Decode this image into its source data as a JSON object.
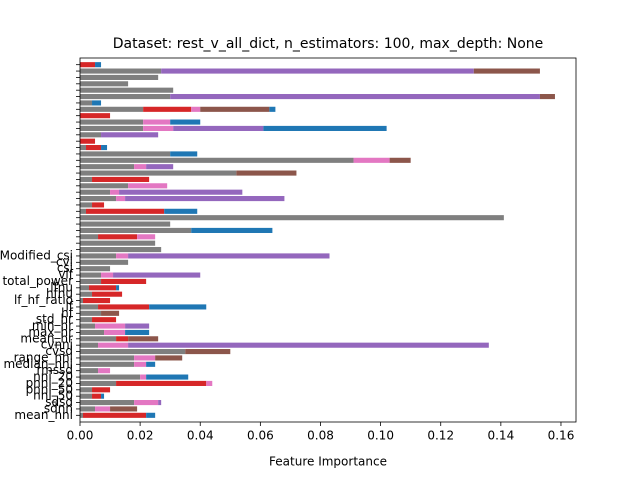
{
  "chart_data": {
    "type": "barh_stacked",
    "title": "Dataset: rest_v_all_dict, n_estimators: 100, max_depth: None",
    "x_label": "Feature Importance",
    "xlim": [
      0,
      0.165
    ],
    "xticks": [
      {
        "value": 0,
        "label": "0.00"
      },
      {
        "value": 0.02,
        "label": "0.02"
      },
      {
        "value": 0.04,
        "label": "0.04"
      },
      {
        "value": 0.06,
        "label": "0.06"
      },
      {
        "value": 0.08,
        "label": "0.08"
      },
      {
        "value": 0.1,
        "label": "0.10"
      },
      {
        "value": 0.12,
        "label": "0.12"
      },
      {
        "value": 0.14,
        "label": "0.14"
      },
      {
        "value": 0.16,
        "label": "0.16"
      }
    ],
    "categories": [
      "mean_nni",
      "sdnn",
      "sdsd",
      "nni_50",
      "pnni_50",
      "pnni_20",
      "nni_20",
      "rmssd",
      "median_nni",
      "range_nni",
      "cvsd",
      "cvnni",
      "mean_hr",
      "max_hr",
      "min_hr",
      "std_hr",
      "hf",
      "lf",
      "lf_hf_ratio",
      "hfnu",
      "lfnu",
      "total_power",
      "vlf",
      "csi",
      "cvi",
      "Modified_csi",
      null,
      null,
      null,
      null,
      null,
      null,
      null,
      null,
      null,
      null,
      null,
      null,
      null,
      null,
      null,
      null,
      null,
      null,
      null,
      null,
      null,
      null,
      null,
      null,
      null,
      null,
      null,
      null,
      null,
      null
    ],
    "series": [
      {
        "color": "#7f7f7f",
        "values": [
          0.001,
          0.005,
          0.018,
          0.004,
          0.004,
          0.012,
          0.02,
          0.006,
          0.018,
          0.018,
          0.035,
          0.006,
          0.012,
          0.008,
          0.005,
          0.004,
          0.007,
          0.006,
          0.001,
          0.004,
          0.003,
          0.007,
          0.007,
          0.01,
          0.016,
          0.012,
          0.027,
          0.025,
          0.006,
          0.037,
          0.03,
          0.141,
          0.002,
          0.004,
          0.012,
          0.01,
          0.016,
          0.004,
          0.052,
          0.018,
          0.091,
          0.03,
          0.002,
          0,
          0.007,
          0.021,
          0.021,
          0,
          0.021,
          0.004,
          0.03,
          0.031,
          0.016,
          0.026,
          0.027,
          0
        ]
      },
      {
        "color": "#d62728",
        "values": [
          0.021,
          0,
          0,
          0.003,
          0.006,
          0.03,
          0,
          0,
          0,
          0,
          0,
          0,
          0.004,
          0,
          0,
          0.008,
          0,
          0.017,
          0.009,
          0.01,
          0.009,
          0.015,
          0,
          0,
          0,
          0,
          0,
          0,
          0.013,
          0,
          0,
          0,
          0.026,
          0.004,
          0,
          0,
          0,
          0.019,
          0,
          0,
          0,
          0,
          0.005,
          0.005,
          0,
          0,
          0,
          0.01,
          0.016,
          0,
          0,
          0,
          0,
          0,
          0,
          0.005
        ]
      },
      {
        "color": "#e377c2",
        "values": [
          0,
          0.005,
          0.008,
          0,
          0,
          0.002,
          0.002,
          0.004,
          0.004,
          0.007,
          0,
          0.01,
          0,
          0.007,
          0.01,
          0,
          0,
          0,
          0,
          0,
          0,
          0,
          0.004,
          0,
          0,
          0.004,
          0,
          0,
          0.006,
          0,
          0,
          0,
          0,
          0,
          0.003,
          0.003,
          0.013,
          0,
          0,
          0.004,
          0.012,
          0,
          0,
          0,
          0,
          0.01,
          0.009,
          0,
          0.003,
          0,
          0,
          0,
          0,
          0,
          0,
          0
        ]
      },
      {
        "color": "#9467bd",
        "values": [
          0,
          0,
          0.001,
          0,
          0,
          0,
          0,
          0,
          0,
          0,
          0,
          0.12,
          0,
          0,
          0.008,
          0,
          0,
          0,
          0,
          0,
          0,
          0,
          0.029,
          0,
          0,
          0.067,
          0,
          0,
          0,
          0,
          0,
          0,
          0,
          0,
          0.053,
          0.041,
          0,
          0,
          0,
          0.009,
          0,
          0,
          0,
          0,
          0.019,
          0.03,
          0,
          0,
          0,
          0,
          0.123,
          0,
          0,
          0,
          0.104,
          0
        ]
      },
      {
        "color": "#8c564b",
        "values": [
          0,
          0.009,
          0,
          0,
          0,
          0,
          0,
          0,
          0,
          0.009,
          0.015,
          0,
          0.01,
          0,
          0,
          0,
          0.006,
          0,
          0,
          0,
          0,
          0,
          0,
          0,
          0,
          0,
          0,
          0,
          0,
          0,
          0,
          0,
          0,
          0,
          0,
          0,
          0,
          0,
          0.02,
          0,
          0.007,
          0,
          0,
          0,
          0,
          0,
          0,
          0,
          0.023,
          0,
          0.005,
          0,
          0,
          0,
          0.022,
          0
        ]
      },
      {
        "color": "#1f77b4",
        "values": [
          0.003,
          0,
          0,
          0.001,
          0,
          0,
          0.014,
          0,
          0.003,
          0,
          0,
          0,
          0,
          0.008,
          0,
          0,
          0,
          0.019,
          0,
          0,
          0.001,
          0,
          0,
          0,
          0,
          0,
          0,
          0,
          0,
          0.027,
          0,
          0,
          0.011,
          0,
          0,
          0,
          0,
          0,
          0,
          0,
          0,
          0.009,
          0.002,
          0,
          0,
          0.041,
          0.01,
          0,
          0.002,
          0.003,
          0,
          0,
          0,
          0,
          0,
          0.002
        ]
      }
    ]
  }
}
